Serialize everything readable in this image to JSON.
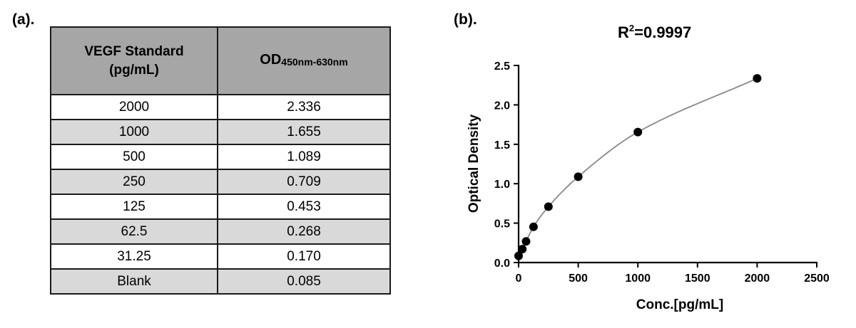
{
  "panels": {
    "a": "(a).",
    "b": "(b)."
  },
  "table": {
    "header": {
      "col1_line1": "VEGF Standard",
      "col1_line2": "(pg/mL)",
      "col2_main": "OD",
      "col2_sub": "450nm-630nm"
    },
    "rows": [
      [
        "2000",
        "2.336"
      ],
      [
        "1000",
        "1.655"
      ],
      [
        "500",
        "1.089"
      ],
      [
        "250",
        "0.709"
      ],
      [
        "125",
        "0.453"
      ],
      [
        "62.5",
        "0.268"
      ],
      [
        "31.25",
        "0.170"
      ],
      [
        "Blank",
        "0.085"
      ]
    ],
    "colors": {
      "header": "#a6a6a6",
      "shaded_row": "#d9d9d9"
    }
  },
  "chart_data": {
    "type": "scatter",
    "title_main": "R",
    "title_sup": "2",
    "title_rest": "=0.9997",
    "xlabel": "Conc.[pg/mL]",
    "ylabel": "Optical Density",
    "xlim": [
      0,
      2500
    ],
    "ylim": [
      0,
      2.5
    ],
    "xticks": [
      0,
      500,
      1000,
      1500,
      2000,
      2500
    ],
    "yticks": [
      0.0,
      0.5,
      1.0,
      1.5,
      2.0,
      2.5
    ],
    "ytick_labels": [
      "0.0",
      "0.5",
      "1.0",
      "1.5",
      "2.0",
      "2.5"
    ],
    "grid": false,
    "fit_curve": true,
    "colors": {
      "points": "#000000",
      "curve": "#888888",
      "axis": "#000000"
    },
    "series": [
      {
        "x": [
          0,
          31.25,
          62.5,
          125,
          250,
          500,
          1000,
          2000
        ],
        "y": [
          0.085,
          0.17,
          0.268,
          0.453,
          0.709,
          1.089,
          1.655,
          2.336
        ]
      }
    ]
  }
}
